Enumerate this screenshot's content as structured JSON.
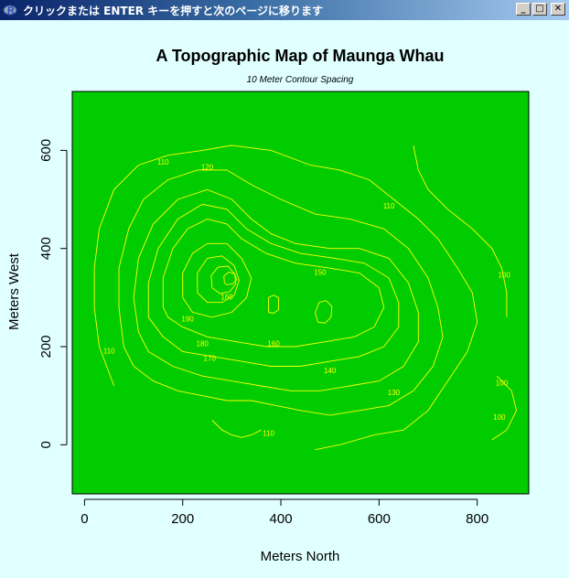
{
  "window": {
    "title": "クリックまたは ENTER キーを押すと次のページに移ります",
    "minimize_glyph": "_",
    "maximize_glyph": "□",
    "close_glyph": "✕"
  },
  "colors": {
    "window_bg": "#e0ffff",
    "plot_fill": "#00cc00",
    "contour": "#ffff00",
    "titlebar_start": "#0a246a",
    "titlebar_end": "#a6caf0"
  },
  "chart_data": {
    "type": "contour",
    "title": "A Topographic Map of Maunga Whau",
    "subtitle": "10 Meter Contour Spacing",
    "xlabel": "Meters North",
    "ylabel": "Meters West",
    "xlim": [
      -25,
      905
    ],
    "ylim": [
      -100,
      720
    ],
    "xticks": [
      0,
      200,
      400,
      600,
      800
    ],
    "yticks": [
      0,
      200,
      400,
      600
    ],
    "grid": false,
    "contour_levels": [
      {
        "level": 100,
        "label": "100",
        "points": [
          [
            670,
            610
          ],
          [
            680,
            560
          ],
          [
            700,
            520
          ],
          [
            740,
            480
          ],
          [
            790,
            440
          ],
          [
            830,
            400
          ],
          [
            850,
            360
          ],
          [
            860,
            310
          ],
          [
            860,
            260
          ]
        ]
      },
      {
        "level": 100,
        "label": "100",
        "points": [
          [
            840,
            140
          ],
          [
            870,
            110
          ],
          [
            880,
            70
          ],
          [
            860,
            30
          ],
          [
            830,
            10
          ]
        ]
      },
      {
        "level": 110,
        "label": "110",
        "points": [
          [
            60,
            120
          ],
          [
            30,
            200
          ],
          [
            20,
            280
          ],
          [
            20,
            360
          ],
          [
            30,
            440
          ],
          [
            60,
            520
          ],
          [
            110,
            570
          ],
          [
            170,
            590
          ],
          [
            240,
            600
          ],
          [
            300,
            610
          ],
          [
            380,
            600
          ],
          [
            460,
            570
          ],
          [
            520,
            560
          ],
          [
            580,
            540
          ],
          [
            630,
            500
          ],
          [
            680,
            460
          ],
          [
            720,
            420
          ],
          [
            760,
            360
          ],
          [
            790,
            310
          ],
          [
            800,
            250
          ],
          [
            780,
            190
          ],
          [
            740,
            130
          ],
          [
            700,
            70
          ],
          [
            650,
            30
          ],
          [
            590,
            20
          ],
          [
            520,
            0
          ],
          [
            470,
            -10
          ]
        ]
      },
      {
        "level": 110,
        "label": "110",
        "points": [
          [
            360,
            30
          ],
          [
            340,
            20
          ],
          [
            320,
            15
          ],
          [
            300,
            20
          ],
          [
            280,
            30
          ],
          [
            260,
            50
          ]
        ]
      },
      {
        "level": 120,
        "label": "120",
        "points": [
          [
            80,
            200
          ],
          [
            70,
            280
          ],
          [
            70,
            360
          ],
          [
            90,
            440
          ],
          [
            120,
            500
          ],
          [
            170,
            540
          ],
          [
            230,
            560
          ],
          [
            290,
            560
          ],
          [
            340,
            530
          ],
          [
            400,
            500
          ],
          [
            470,
            470
          ],
          [
            540,
            460
          ],
          [
            610,
            440
          ],
          [
            660,
            400
          ],
          [
            700,
            340
          ],
          [
            720,
            280
          ],
          [
            730,
            220
          ],
          [
            710,
            160
          ],
          [
            670,
            110
          ],
          [
            620,
            80
          ],
          [
            560,
            70
          ],
          [
            500,
            60
          ],
          [
            440,
            70
          ],
          [
            390,
            80
          ],
          [
            340,
            90
          ],
          [
            290,
            90
          ],
          [
            240,
            100
          ],
          [
            190,
            110
          ],
          [
            140,
            130
          ],
          [
            100,
            160
          ],
          [
            80,
            200
          ]
        ]
      },
      {
        "level": 130,
        "label": "130",
        "points": [
          [
            110,
            230
          ],
          [
            100,
            300
          ],
          [
            110,
            380
          ],
          [
            140,
            450
          ],
          [
            190,
            500
          ],
          [
            250,
            520
          ],
          [
            300,
            500
          ],
          [
            340,
            460
          ],
          [
            380,
            430
          ],
          [
            430,
            410
          ],
          [
            500,
            400
          ],
          [
            560,
            400
          ],
          [
            620,
            380
          ],
          [
            660,
            330
          ],
          [
            680,
            270
          ],
          [
            680,
            210
          ],
          [
            650,
            160
          ],
          [
            600,
            130
          ],
          [
            540,
            120
          ],
          [
            480,
            110
          ],
          [
            420,
            110
          ],
          [
            360,
            120
          ],
          [
            300,
            130
          ],
          [
            240,
            140
          ],
          [
            180,
            160
          ],
          [
            130,
            190
          ],
          [
            110,
            230
          ]
        ]
      },
      {
        "level": 140,
        "label": "140",
        "points": [
          [
            130,
            260
          ],
          [
            130,
            330
          ],
          [
            150,
            400
          ],
          [
            190,
            460
          ],
          [
            240,
            490
          ],
          [
            290,
            480
          ],
          [
            330,
            440
          ],
          [
            380,
            410
          ],
          [
            440,
            390
          ],
          [
            510,
            380
          ],
          [
            570,
            370
          ],
          [
            620,
            340
          ],
          [
            640,
            290
          ],
          [
            640,
            240
          ],
          [
            610,
            200
          ],
          [
            560,
            180
          ],
          [
            500,
            170
          ],
          [
            440,
            160
          ],
          [
            380,
            160
          ],
          [
            320,
            170
          ],
          [
            260,
            180
          ],
          [
            200,
            190
          ],
          [
            160,
            220
          ],
          [
            130,
            260
          ]
        ]
      },
      {
        "level": 150,
        "label": "150",
        "points": [
          [
            160,
            280
          ],
          [
            160,
            340
          ],
          [
            180,
            400
          ],
          [
            210,
            440
          ],
          [
            250,
            460
          ],
          [
            290,
            450
          ],
          [
            320,
            420
          ],
          [
            370,
            390
          ],
          [
            430,
            370
          ],
          [
            500,
            360
          ],
          [
            560,
            350
          ],
          [
            600,
            320
          ],
          [
            610,
            280
          ],
          [
            590,
            240
          ],
          [
            550,
            220
          ],
          [
            490,
            210
          ],
          [
            430,
            200
          ],
          [
            370,
            200
          ],
          [
            310,
            210
          ],
          [
            250,
            220
          ],
          [
            200,
            240
          ],
          [
            170,
            260
          ],
          [
            160,
            280
          ]
        ]
      },
      {
        "level": 160,
        "label": "160",
        "points": [
          [
            200,
            300
          ],
          [
            200,
            350
          ],
          [
            220,
            390
          ],
          [
            250,
            410
          ],
          [
            290,
            410
          ],
          [
            320,
            380
          ],
          [
            340,
            340
          ],
          [
            330,
            300
          ],
          [
            300,
            270
          ],
          [
            260,
            260
          ],
          [
            220,
            270
          ],
          [
            200,
            300
          ]
        ]
      },
      {
        "level": 170,
        "label": "170",
        "points": [
          [
            230,
            310
          ],
          [
            230,
            350
          ],
          [
            250,
            380
          ],
          [
            280,
            385
          ],
          [
            305,
            365
          ],
          [
            315,
            335
          ],
          [
            305,
            305
          ],
          [
            280,
            290
          ],
          [
            250,
            290
          ],
          [
            230,
            310
          ]
        ]
      },
      {
        "level": 180,
        "label": "180",
        "points": [
          [
            260,
            320
          ],
          [
            258,
            345
          ],
          [
            272,
            362
          ],
          [
            292,
            364
          ],
          [
            306,
            348
          ],
          [
            308,
            328
          ],
          [
            296,
            312
          ],
          [
            276,
            308
          ],
          [
            260,
            320
          ]
        ]
      },
      {
        "level": 190,
        "label": "190",
        "points": [
          [
            285,
            330
          ],
          [
            284,
            344
          ],
          [
            294,
            352
          ],
          [
            306,
            348
          ],
          [
            310,
            336
          ],
          [
            302,
            328
          ],
          [
            290,
            326
          ],
          [
            285,
            330
          ]
        ]
      },
      {
        "level": 150,
        "label": "",
        "points": [
          [
            375,
            270
          ],
          [
            375,
            300
          ],
          [
            385,
            305
          ],
          [
            395,
            300
          ],
          [
            395,
            275
          ],
          [
            385,
            268
          ],
          [
            375,
            270
          ]
        ]
      },
      {
        "level": 150,
        "label": "",
        "points": [
          [
            475,
            250
          ],
          [
            470,
            270
          ],
          [
            478,
            290
          ],
          [
            492,
            294
          ],
          [
            504,
            282
          ],
          [
            502,
            260
          ],
          [
            490,
            248
          ],
          [
            475,
            250
          ]
        ]
      }
    ],
    "annotations": [
      {
        "text": "110",
        "x": 160,
        "y": 575
      },
      {
        "text": "120",
        "x": 250,
        "y": 565
      },
      {
        "text": "110",
        "x": 620,
        "y": 485
      },
      {
        "text": "110",
        "x": 50,
        "y": 190
      },
      {
        "text": "100",
        "x": 855,
        "y": 345
      },
      {
        "text": "150",
        "x": 480,
        "y": 350
      },
      {
        "text": "160",
        "x": 290,
        "y": 300
      },
      {
        "text": "190",
        "x": 210,
        "y": 255
      },
      {
        "text": "180",
        "x": 240,
        "y": 205
      },
      {
        "text": "170",
        "x": 255,
        "y": 175
      },
      {
        "text": "160",
        "x": 385,
        "y": 205
      },
      {
        "text": "140",
        "x": 500,
        "y": 150
      },
      {
        "text": "130",
        "x": 630,
        "y": 105
      },
      {
        "text": "110",
        "x": 375,
        "y": 22
      },
      {
        "text": "100",
        "x": 850,
        "y": 125
      },
      {
        "text": "100",
        "x": 845,
        "y": 55
      }
    ]
  }
}
